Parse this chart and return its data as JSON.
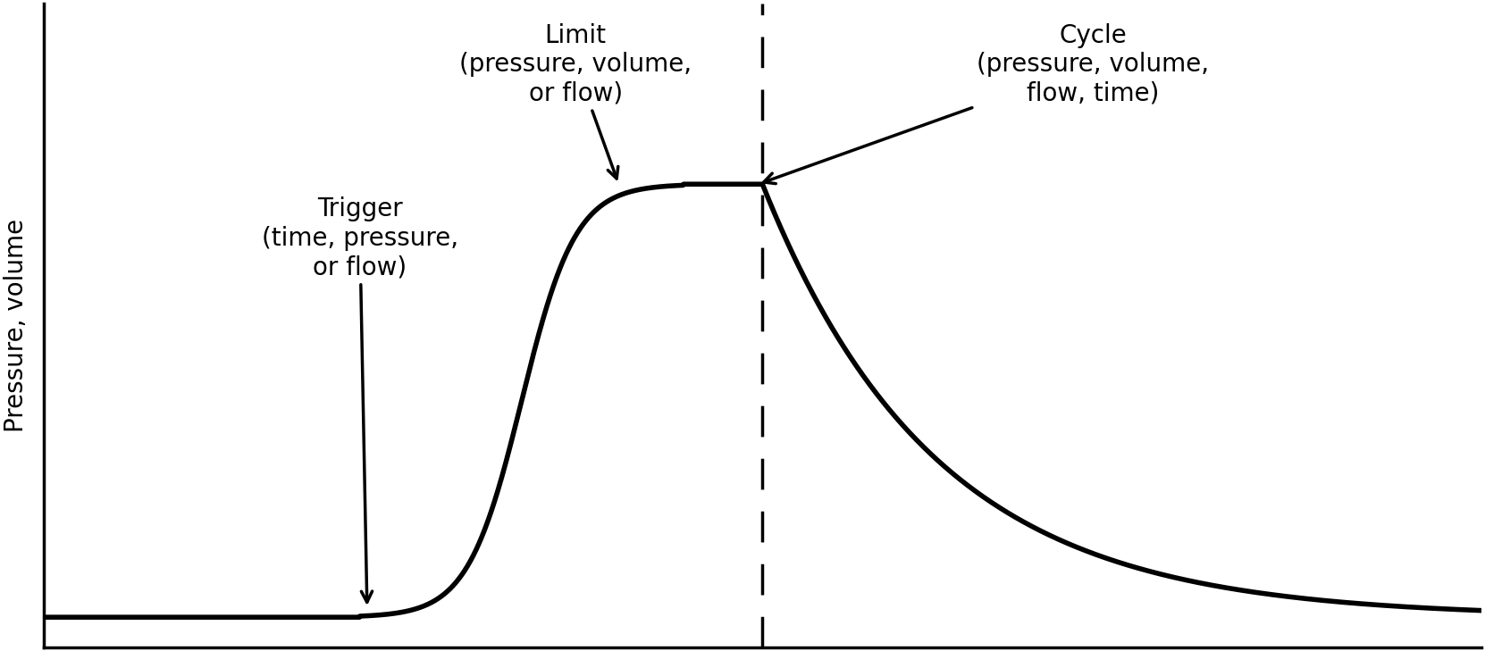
{
  "ylabel": "Pressure, volume",
  "background_color": "#ffffff",
  "line_color": "#000000",
  "dashed_line_color": "#000000",
  "curve_linewidth": 4.0,
  "dashed_linewidth": 2.5,
  "annotation_fontsize": 20,
  "ylabel_fontsize": 20,
  "limit_text": "Limit\n(pressure, volume,\nor flow)",
  "cycle_text": "Cycle\n(pressure, volume,\nflow, time)",
  "trigger_text": "Trigger\n(time, pressure,\nor flow)",
  "dashed_line_x": 0.5
}
